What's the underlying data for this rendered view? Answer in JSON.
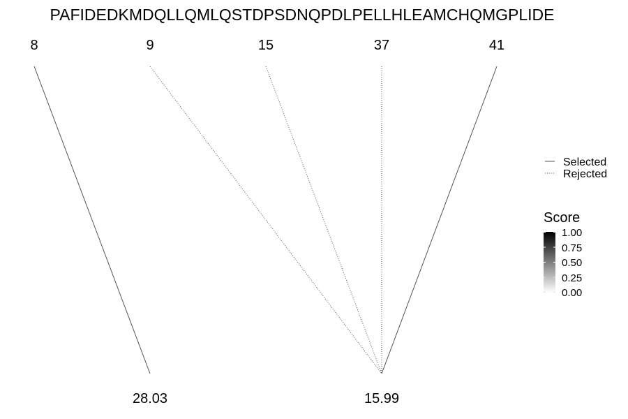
{
  "sequence": "PAFIDEDKMDQLLQMLQSTDPSDNQPDLPELLHLEAMCHQMGPLIDE",
  "sites": [
    {
      "label": "8"
    },
    {
      "label": "9"
    },
    {
      "label": "15"
    },
    {
      "label": "37"
    },
    {
      "label": "41"
    }
  ],
  "targets": [
    {
      "label": "28.03"
    },
    {
      "label": "15.99"
    }
  ],
  "links": [
    {
      "from": 0,
      "to": 0,
      "status": "selected"
    },
    {
      "from": 1,
      "to": 1,
      "status": "rejected"
    },
    {
      "from": 2,
      "to": 1,
      "status": "rejected"
    },
    {
      "from": 3,
      "to": 1,
      "status": "rejected"
    },
    {
      "from": 4,
      "to": 1,
      "status": "selected"
    }
  ],
  "line_legend": {
    "selected": "Selected",
    "rejected": "Rejected"
  },
  "score_legend": {
    "title": "Score",
    "ticks": [
      "1.00",
      "0.75",
      "0.50",
      "0.25",
      "0.00"
    ],
    "color_high": "#000000",
    "color_low": "#ffffff"
  },
  "colors": {
    "line": "#555555",
    "text": "#000000"
  }
}
